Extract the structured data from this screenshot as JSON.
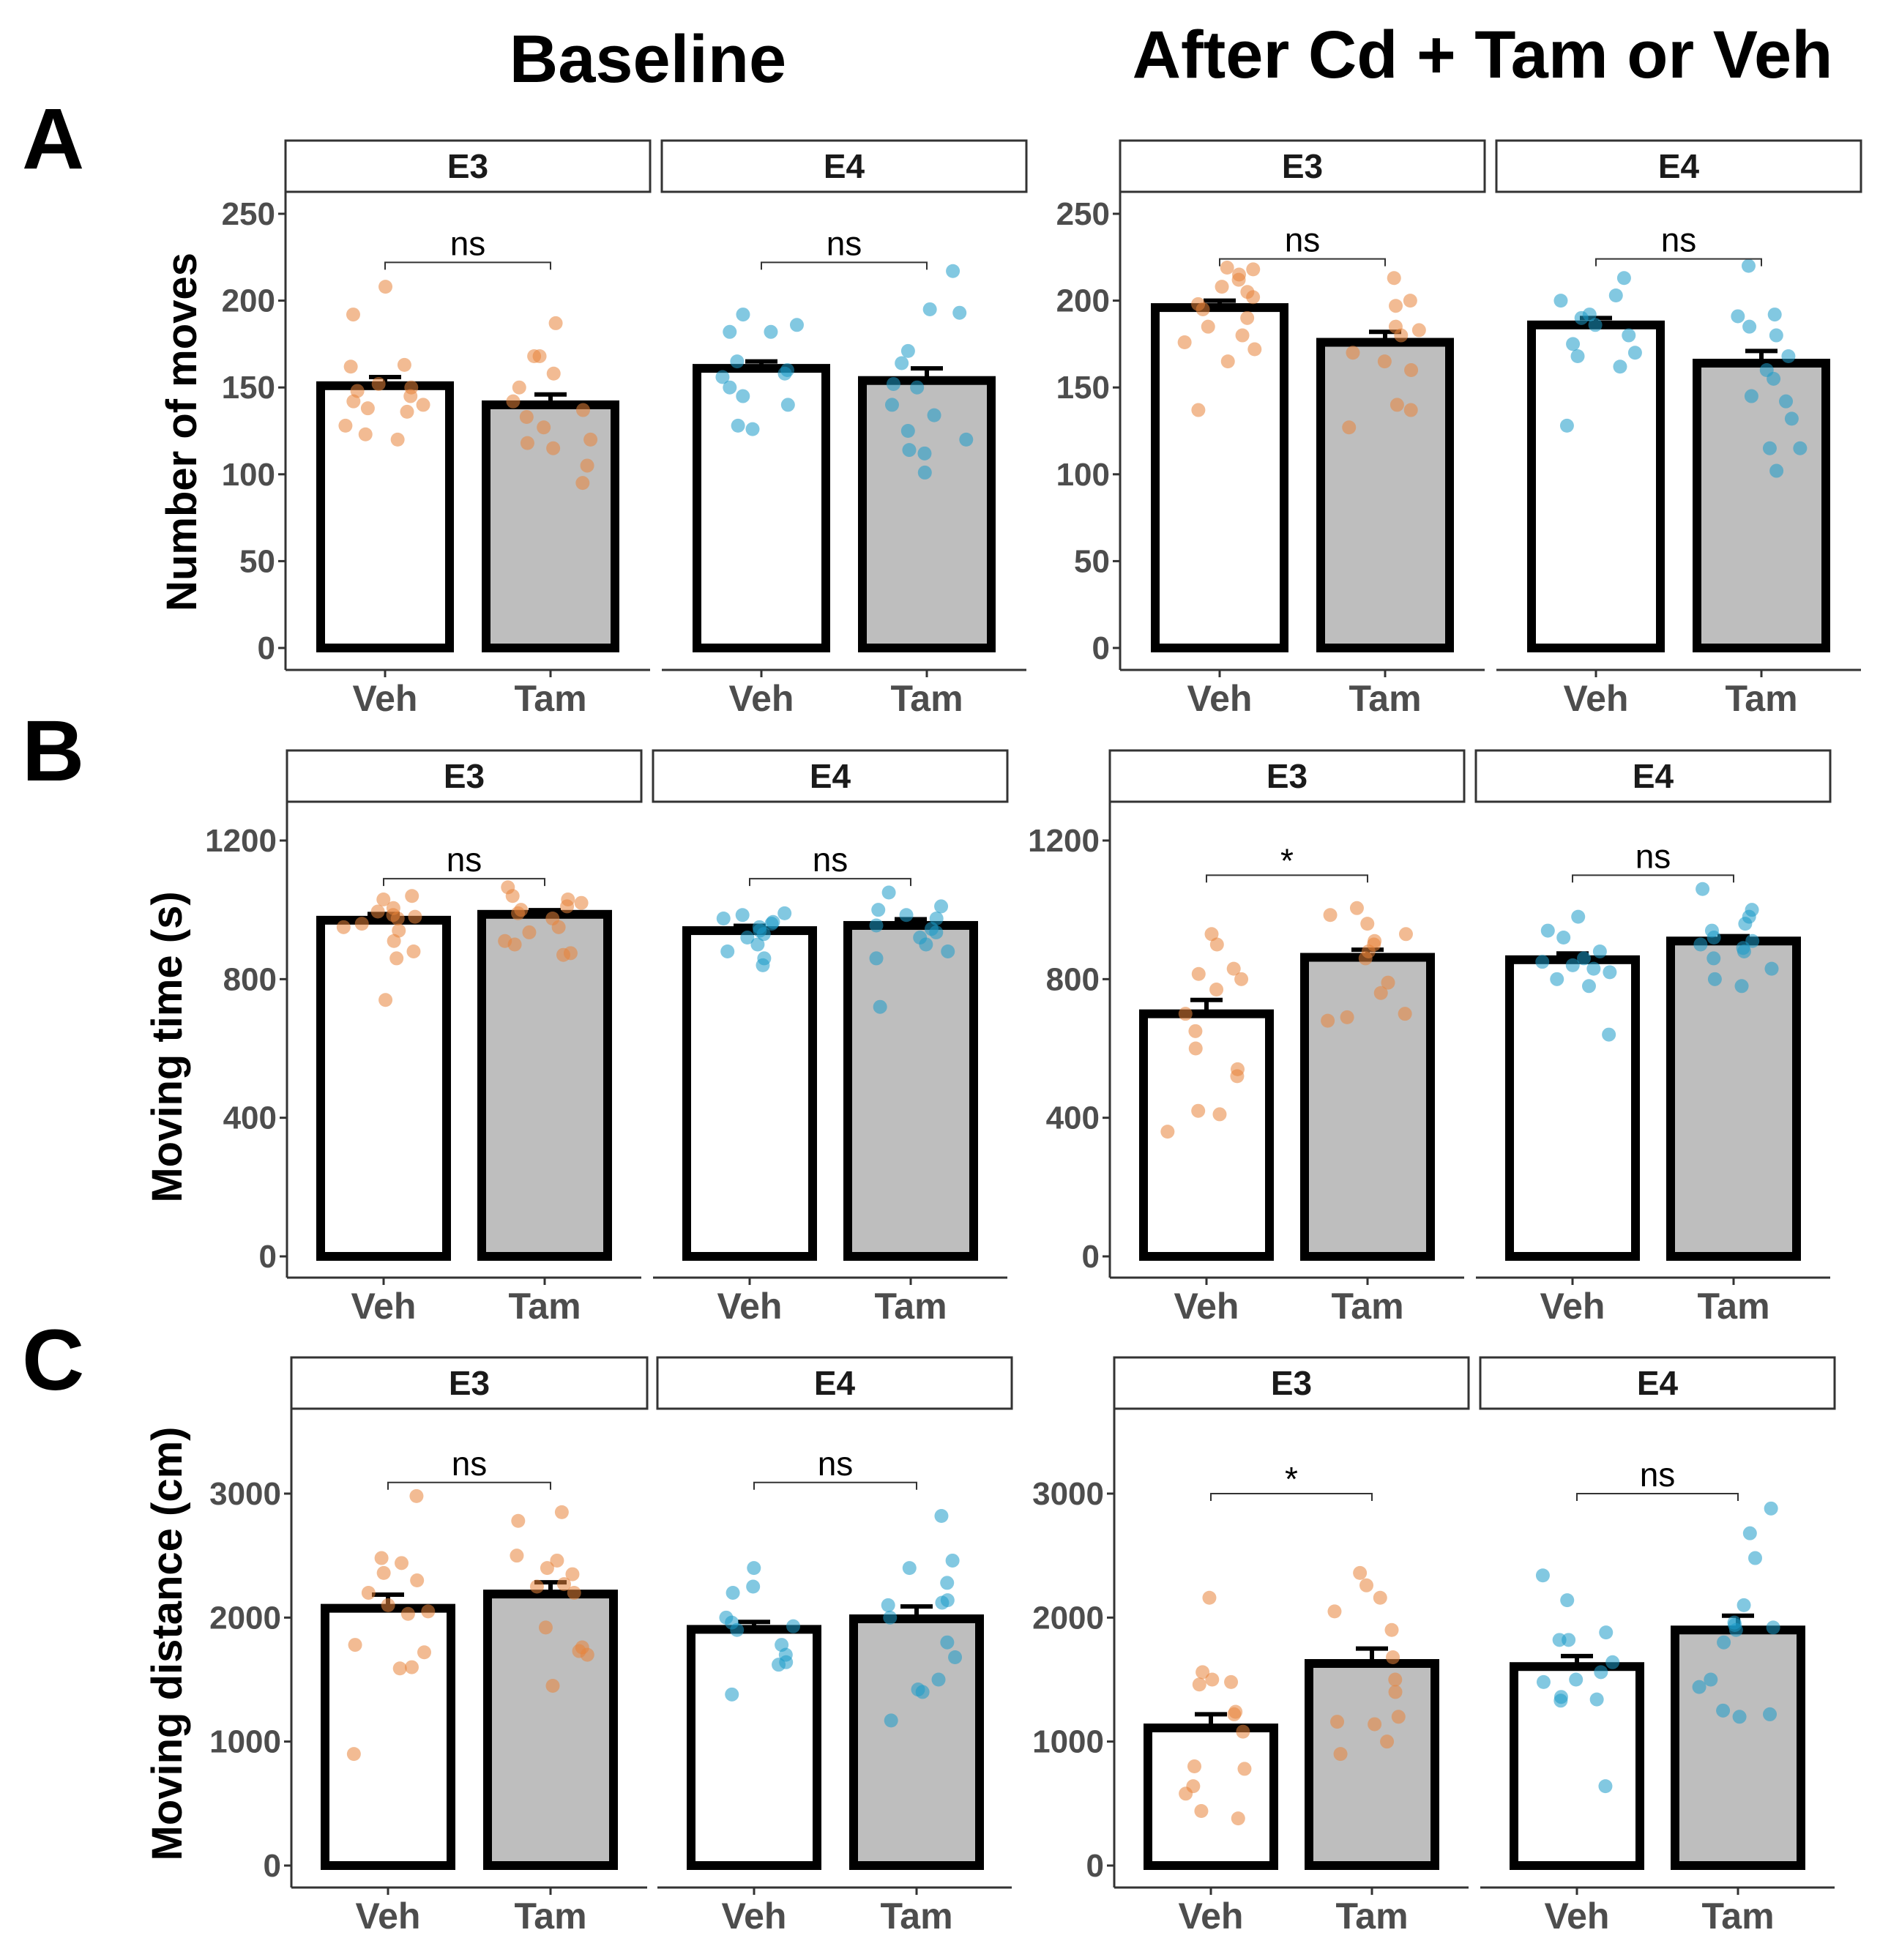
{
  "figure": {
    "column_titles": [
      "Baseline",
      "After Cd + Tam or Veh"
    ],
    "colors": {
      "E3": "#E8833A",
      "E4": "#1B9AC8",
      "veh_fill": "#FFFFFF",
      "tam_fill": "#BEBEBE"
    }
  },
  "chart_data": [
    {
      "type": "bar",
      "row": "A",
      "title": "Baseline",
      "ylabel": "Number of moves",
      "ylim": [
        0,
        275
      ],
      "yticks": [
        "0",
        "50",
        "100",
        "150",
        "200",
        "250"
      ],
      "ytick_values": [
        0,
        50,
        100,
        150,
        200,
        250
      ],
      "facets": [
        {
          "label": "E3",
          "categories": [
            "Veh",
            "Tam"
          ],
          "means": [
            151,
            140
          ],
          "se": [
            5,
            6
          ],
          "significance": "ns",
          "sig_y": 222,
          "points": [
            [
              163,
              162,
              152,
              150,
              148,
              145,
              142,
              140,
              138,
              136,
              128,
              123,
              120,
              208,
              192
            ],
            [
              187,
              168,
              168,
              158,
              150,
              142,
              137,
              133,
              127,
              120,
              118,
              115,
              105,
              95
            ]
          ]
        },
        {
          "label": "E4",
          "categories": [
            "Veh",
            "Tam"
          ],
          "means": [
            161,
            154
          ],
          "se": [
            4,
            7
          ],
          "significance": "ns",
          "sig_y": 222,
          "points": [
            [
              192,
              186,
              182,
              182,
              165,
              160,
              158,
              156,
              150,
              145,
              140,
              128,
              126
            ],
            [
              217,
              195,
              193,
              171,
              164,
              152,
              150,
              140,
              134,
              125,
              120,
              114,
              112,
              101
            ]
          ]
        }
      ]
    },
    {
      "type": "bar",
      "row": "A",
      "title": "After Cd + Tam or Veh",
      "ylabel": "",
      "ylim": [
        0,
        275
      ],
      "yticks": [
        "0",
        "50",
        "100",
        "150",
        "200",
        "250"
      ],
      "ytick_values": [
        0,
        50,
        100,
        150,
        200,
        250
      ],
      "facets": [
        {
          "label": "E3",
          "categories": [
            "Veh",
            "Tam"
          ],
          "means": [
            196,
            176
          ],
          "se": [
            4,
            6
          ],
          "significance": "ns",
          "sig_y": 224,
          "points": [
            [
              219,
              218,
              215,
              212,
              208,
              205,
              202,
              198,
              195,
              190,
              185,
              180,
              176,
              172,
              165,
              137
            ],
            [
              213,
              200,
              197,
              185,
              183,
              180,
              170,
              165,
              160,
              140,
              137,
              127
            ]
          ]
        },
        {
          "label": "E4",
          "categories": [
            "Veh",
            "Tam"
          ],
          "means": [
            186,
            164
          ],
          "se": [
            4,
            7
          ],
          "significance": "ns",
          "sig_y": 224,
          "points": [
            [
              213,
              203,
              200,
              192,
              190,
              186,
              180,
              175,
              170,
              168,
              162,
              128
            ],
            [
              220,
              192,
              191,
              185,
              180,
              168,
              160,
              155,
              145,
              142,
              132,
              115,
              115,
              102
            ]
          ]
        }
      ]
    },
    {
      "type": "bar",
      "row": "B",
      "title": "Baseline",
      "ylabel": "Moving time (s)",
      "ylim": [
        0,
        1320
      ],
      "yticks": [
        "0",
        "400",
        "800",
        "1200"
      ],
      "ytick_values": [
        0,
        400,
        800,
        1200
      ],
      "facets": [
        {
          "label": "E3",
          "categories": [
            "Veh",
            "Tam"
          ],
          "means": [
            970,
            987
          ],
          "se": [
            18,
            12
          ],
          "significance": "ns",
          "sig_y": 1090,
          "points": [
            [
              1040,
              1030,
              1005,
              995,
              985,
              980,
              975,
              960,
              950,
              940,
              910,
              880,
              860,
              740
            ],
            [
              1065,
              1040,
              1030,
              1020,
              1010,
              1000,
              990,
              975,
              950,
              935,
              910,
              900,
              875,
              870
            ]
          ]
        },
        {
          "label": "E4",
          "categories": [
            "Veh",
            "Tam"
          ],
          "means": [
            940,
            955
          ],
          "se": [
            14,
            18
          ],
          "significance": "ns",
          "sig_y": 1090,
          "points": [
            [
              990,
              985,
              975,
              965,
              960,
              950,
              940,
              930,
              920,
              900,
              880,
              860,
              840
            ],
            [
              1050,
              1010,
              1000,
              985,
              975,
              955,
              945,
              935,
              920,
              900,
              880,
              860,
              720
            ]
          ]
        }
      ]
    },
    {
      "type": "bar",
      "row": "B",
      "title": "After Cd + Tam or Veh",
      "ylabel": "",
      "ylim": [
        0,
        1320
      ],
      "yticks": [
        "0",
        "400",
        "800",
        "1200"
      ],
      "ytick_values": [
        0,
        400,
        800,
        1200
      ],
      "facets": [
        {
          "label": "E3",
          "categories": [
            "Veh",
            "Tam"
          ],
          "means": [
            700,
            863
          ],
          "se": [
            40,
            22
          ],
          "significance": "*",
          "sig_y": 1100,
          "points": [
            [
              930,
              900,
              830,
              815,
              800,
              770,
              700,
              650,
              600,
              540,
              520,
              420,
              410,
              360
            ],
            [
              1005,
              985,
              960,
              930,
              910,
              900,
              880,
              860,
              790,
              760,
              700,
              690,
              680
            ]
          ]
        },
        {
          "label": "E4",
          "categories": [
            "Veh",
            "Tam"
          ],
          "means": [
            856,
            910
          ],
          "se": [
            18,
            14
          ],
          "significance": "ns",
          "sig_y": 1100,
          "points": [
            [
              980,
              940,
              920,
              880,
              860,
              850,
              840,
              830,
              820,
              800,
              780,
              640
            ],
            [
              1060,
              1000,
              980,
              960,
              940,
              920,
              910,
              900,
              890,
              880,
              860,
              830,
              800,
              780
            ]
          ]
        }
      ]
    },
    {
      "type": "bar",
      "row": "C",
      "title": "Baseline",
      "ylabel": "Moving distance (cm)",
      "ylim": [
        0,
        3700
      ],
      "yticks": [
        "0",
        "1000",
        "2000",
        "3000"
      ],
      "ytick_values": [
        0,
        1000,
        2000,
        3000
      ],
      "facets": [
        {
          "label": "E3",
          "categories": [
            "Veh",
            "Tam"
          ],
          "means": [
            2075,
            2190
          ],
          "se": [
            110,
            95
          ],
          "significance": "ns",
          "sig_y": 3090,
          "points": [
            [
              2980,
              2480,
              2440,
              2360,
              2300,
              2200,
              2100,
              2050,
              2030,
              1780,
              1720,
              1600,
              1590,
              900
            ],
            [
              2850,
              2780,
              2500,
              2460,
              2400,
              2350,
              2270,
              2250,
              2200,
              1920,
              1760,
              1730,
              1700,
              1450
            ]
          ]
        },
        {
          "label": "E4",
          "categories": [
            "Veh",
            "Tam"
          ],
          "means": [
            1905,
            1990
          ],
          "se": [
            60,
            100
          ],
          "significance": "ns",
          "sig_y": 3090,
          "points": [
            [
              2400,
              2250,
              2200,
              2000,
              1960,
              1930,
              1900,
              1780,
              1700,
              1640,
              1620,
              1380
            ],
            [
              2820,
              2460,
              2400,
              2280,
              2140,
              2120,
              2100,
              2000,
              1800,
              1680,
              1500,
              1420,
              1400,
              1170
            ]
          ]
        }
      ]
    },
    {
      "type": "bar",
      "row": "C",
      "title": "After Cd + Tam or Veh",
      "ylabel": "",
      "ylim": [
        0,
        3700
      ],
      "yticks": [
        "0",
        "1000",
        "2000",
        "3000"
      ],
      "ytick_values": [
        0,
        1000,
        2000,
        3000
      ],
      "facets": [
        {
          "label": "E3",
          "categories": [
            "Veh",
            "Tam"
          ],
          "means": [
            1110,
            1630
          ],
          "se": [
            110,
            120
          ],
          "significance": "*",
          "sig_y": 3000,
          "points": [
            [
              2160,
              1560,
              1500,
              1480,
              1460,
              1240,
              1220,
              1080,
              800,
              780,
              640,
              580,
              440,
              380
            ],
            [
              2360,
              2260,
              2160,
              2050,
              1900,
              1680,
              1500,
              1400,
              1200,
              1160,
              1140,
              1000,
              900
            ]
          ]
        },
        {
          "label": "E4",
          "categories": [
            "Veh",
            "Tam"
          ],
          "means": [
            1605,
            1900
          ],
          "se": [
            85,
            115
          ],
          "significance": "ns",
          "sig_y": 3000,
          "points": [
            [
              2340,
              2140,
              1880,
              1820,
              1820,
              1640,
              1560,
              1500,
              1480,
              1360,
              1340,
              1330,
              640
            ],
            [
              2880,
              2680,
              2480,
              2100,
              1960,
              1940,
              1920,
              1900,
              1800,
              1500,
              1440,
              1250,
              1220,
              1200
            ]
          ]
        }
      ]
    }
  ]
}
